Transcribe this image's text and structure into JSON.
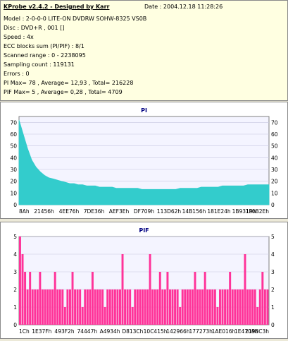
{
  "info": {
    "title": "KProbe v2.4.2 - Designed by Karr",
    "date": "Date : 2004.12.18 11:28:26",
    "lines": [
      "Model : 2-0-0-0 LITE-ON DVDRW SOHW-8325  VS0B",
      "Disc : DVD+R , 001 []",
      "Speed : 4x",
      "ECC blocks sum (PI/PIF) : 8/1",
      "Scanned range : 0 - 2238095",
      "Sampling count : 119131",
      "Errors : 0",
      "PI Max= 78 , Average= 12,93 , Total= 216228",
      "PIF Max= 5 , Average= 0,28 , Total= 4709"
    ]
  },
  "colors": {
    "pi": "#33cccc",
    "pif": "#ff3399",
    "title": "#000080",
    "plot_bg": "#f4f4ff",
    "grid": "#c8c8e0"
  },
  "chart_data": [
    {
      "type": "area",
      "title": "PI",
      "ylim": [
        0,
        75
      ],
      "yticks": [
        0,
        10,
        20,
        30,
        40,
        50,
        60,
        70
      ],
      "grid": true,
      "x_tick_labels": [
        "8Ah",
        "21456h",
        "4EE76h",
        "7DE36h",
        "AEF3Eh",
        "DF709h",
        "113D62h",
        "14B156h",
        "181E24h",
        "1B9319h",
        "1F0B2Eh"
      ],
      "series": [
        {
          "values": [
            72,
            60,
            48,
            38,
            32,
            28,
            25,
            23,
            22,
            21,
            20,
            19,
            18,
            18,
            17,
            17,
            16,
            16,
            16,
            15,
            15,
            15,
            15,
            14,
            14,
            14,
            14,
            14,
            14,
            13,
            13,
            13,
            13,
            13,
            13,
            13,
            13,
            13,
            14,
            14,
            14,
            14,
            14,
            15,
            15,
            15,
            15,
            15,
            16,
            16,
            16,
            16,
            16,
            16,
            17,
            17,
            17,
            17,
            17,
            17
          ]
        }
      ]
    },
    {
      "type": "bar",
      "title": "PIF",
      "ylim": [
        0,
        5
      ],
      "yticks": [
        0,
        1,
        2,
        3,
        4,
        5
      ],
      "grid": true,
      "x_tick_labels": [
        "1Ch",
        "1E37Fh",
        "493F2h",
        "74447h",
        "A4934h",
        "D813Ch",
        "10C415h",
        "142966h",
        "177273h",
        "1AE016h",
        "1E4708h",
        "2198C3h"
      ],
      "series": [
        {
          "values": [
            5,
            4,
            3,
            2,
            3,
            2,
            2,
            2,
            3,
            2,
            2,
            2,
            2,
            2,
            3,
            2,
            2,
            2,
            1,
            2,
            2,
            3,
            2,
            2,
            2,
            1,
            2,
            2,
            2,
            3,
            2,
            2,
            2,
            2,
            1,
            2,
            2,
            2,
            2,
            2,
            2,
            4,
            2,
            2,
            2,
            1,
            2,
            2,
            2,
            2,
            2,
            2,
            4,
            2,
            2,
            2,
            3,
            2,
            2,
            3,
            2,
            2,
            2,
            2,
            1,
            2,
            2,
            2,
            2,
            2,
            3,
            2,
            2,
            2,
            3,
            2,
            2,
            2,
            2,
            1,
            2,
            2,
            2,
            2,
            3,
            2,
            2,
            2,
            2,
            2,
            4,
            2,
            2,
            2,
            2,
            1,
            2,
            3,
            2,
            2
          ]
        }
      ]
    }
  ]
}
